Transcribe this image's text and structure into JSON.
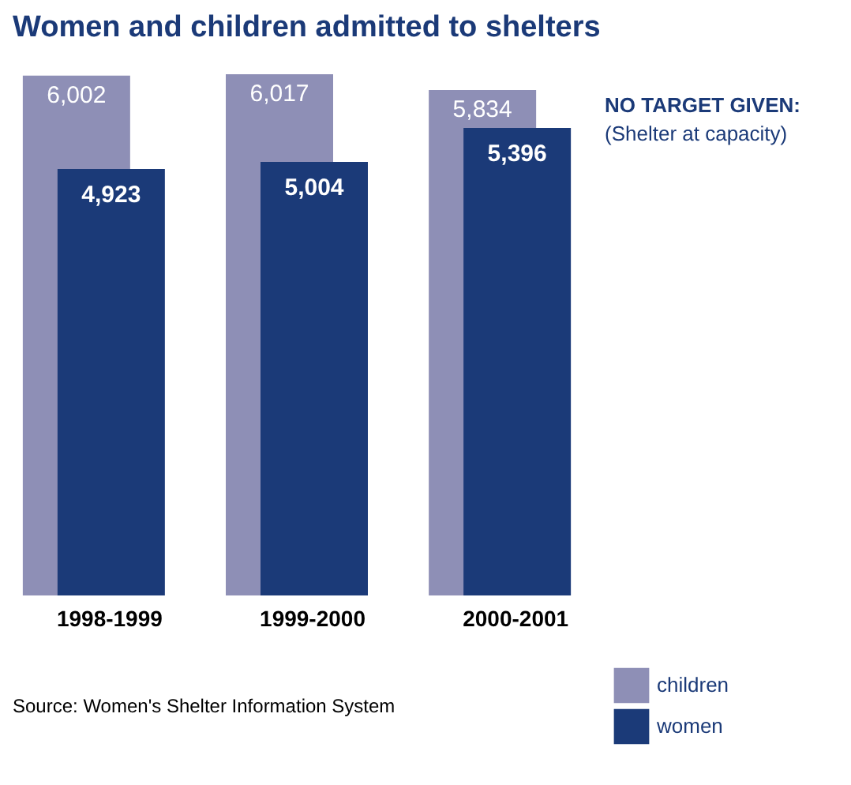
{
  "chart_data": {
    "type": "bar",
    "title": "Women and children admitted to shelters",
    "categories": [
      "1998-1999",
      "1999-2000",
      "2000-2001"
    ],
    "series": [
      {
        "name": "children",
        "color": "#8e8fb6",
        "values": [
          6002,
          6017,
          5834
        ],
        "value_labels": [
          "6,002",
          "6,017",
          "5,834"
        ]
      },
      {
        "name": "women",
        "color": "#1b3a78",
        "values": [
          4923,
          5004,
          5396
        ],
        "value_labels": [
          "4,923",
          "5,004",
          "5,396"
        ]
      }
    ],
    "legend": "bottom right",
    "grid": false,
    "annotations": [
      "NO TARGET GIVEN:",
      "(Shelter at capacity)",
      "Source: Women's Shelter Information System"
    ]
  }
}
